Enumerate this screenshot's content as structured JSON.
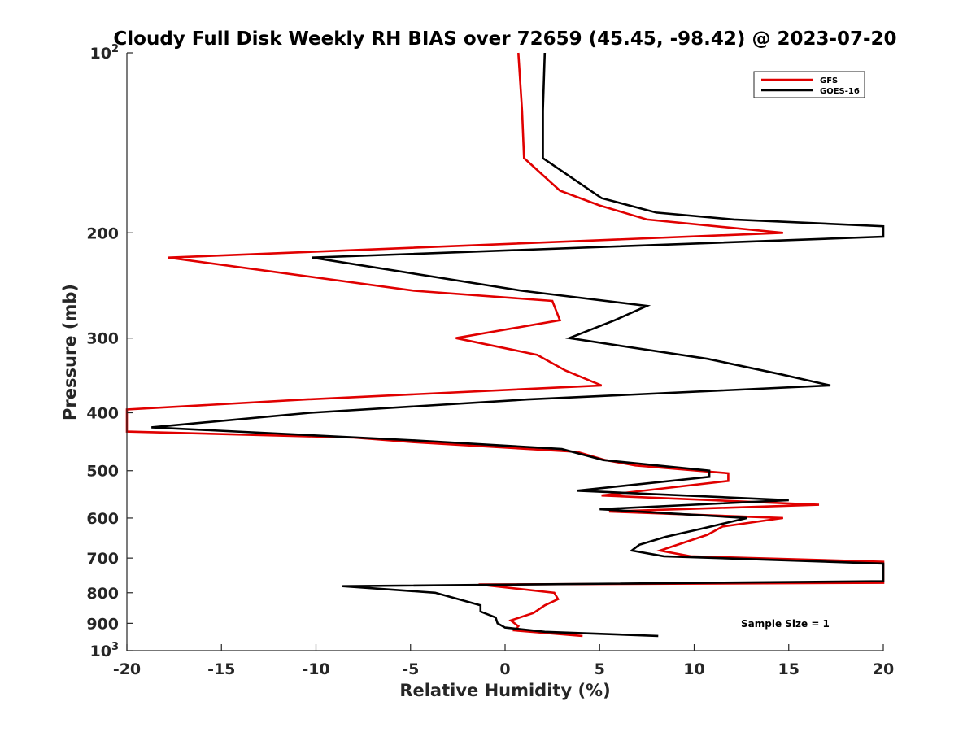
{
  "chart_data": {
    "type": "line",
    "title": "Cloudy Full Disk Weekly RH BIAS over 72659 (45.45, -98.42) @ 2023-07-20",
    "xlabel": "Relative Humidity (%)",
    "ylabel": "Pressure (mb)",
    "xlim": [
      -20,
      20
    ],
    "ylim": [
      100,
      1000
    ],
    "y_scale": "log",
    "y_reversed": true,
    "xticks": [
      -20,
      -15,
      -10,
      -5,
      0,
      5,
      10,
      15,
      20
    ],
    "xtick_labels": [
      "-20",
      "-15",
      "-10",
      "-5",
      "0",
      "5",
      "10",
      "15",
      "20"
    ],
    "yticks": [
      {
        "value": 100,
        "base": "10",
        "exp": "2"
      },
      {
        "value": 200,
        "label": "200"
      },
      {
        "value": 300,
        "label": "300"
      },
      {
        "value": 400,
        "label": "400"
      },
      {
        "value": 500,
        "label": "500"
      },
      {
        "value": 600,
        "label": "600"
      },
      {
        "value": 700,
        "label": "700"
      },
      {
        "value": 800,
        "label": "800"
      },
      {
        "value": 900,
        "label": "900"
      },
      {
        "value": 1000,
        "base": "10",
        "exp": "3"
      }
    ],
    "grid": false,
    "legend_position": "top-right",
    "annotation": "Sample Size = 1",
    "series": [
      {
        "name": "GFS",
        "color": "#e00000",
        "points": [
          [
            0.7,
            100
          ],
          [
            0.9,
            125
          ],
          [
            1.0,
            150
          ],
          [
            2.9,
            170
          ],
          [
            5.0,
            180
          ],
          [
            7.5,
            190
          ],
          [
            14.7,
            200
          ],
          [
            -17.8,
            220
          ],
          [
            -4.8,
            250
          ],
          [
            2.5,
            260
          ],
          [
            2.9,
            280
          ],
          [
            -2.6,
            300
          ],
          [
            1.7,
            320
          ],
          [
            3.2,
            340
          ],
          [
            5.1,
            360
          ],
          [
            -10.5,
            380
          ],
          [
            -20,
            395
          ],
          [
            -20,
            430
          ],
          [
            -8.0,
            440
          ],
          [
            -4.8,
            448
          ],
          [
            3.8,
            465
          ],
          [
            5.3,
            480
          ],
          [
            6.9,
            490
          ],
          [
            11.8,
            505
          ],
          [
            11.8,
            520
          ],
          [
            5.1,
            550
          ],
          [
            16.6,
            570
          ],
          [
            5.5,
            585
          ],
          [
            14.7,
            600
          ],
          [
            11.5,
            620
          ],
          [
            10.7,
            640
          ],
          [
            8.2,
            680
          ],
          [
            9.8,
            695
          ],
          [
            20,
            710
          ],
          [
            20,
            770
          ],
          [
            -1.4,
            775
          ],
          [
            2.6,
            800
          ],
          [
            2.8,
            820
          ],
          [
            2.1,
            840
          ],
          [
            1.5,
            865
          ],
          [
            0.3,
            890
          ],
          [
            0.7,
            910
          ],
          [
            0.5,
            925
          ],
          [
            4.1,
            945
          ]
        ]
      },
      {
        "name": "GOES-16",
        "color": "#000000",
        "points": [
          [
            2.1,
            100
          ],
          [
            2.0,
            125
          ],
          [
            2.0,
            150
          ],
          [
            5.1,
            175
          ],
          [
            8.0,
            185
          ],
          [
            12.1,
            190
          ],
          [
            20,
            195
          ],
          [
            20,
            203
          ],
          [
            -10.2,
            220
          ],
          [
            0.9,
            250
          ],
          [
            7.5,
            265
          ],
          [
            5.8,
            280
          ],
          [
            3.4,
            300
          ],
          [
            10.7,
            325
          ],
          [
            14.6,
            345
          ],
          [
            17.2,
            360
          ],
          [
            1.2,
            380
          ],
          [
            -10.3,
            400
          ],
          [
            -18.7,
            423
          ],
          [
            -4.7,
            445
          ],
          [
            3.0,
            460
          ],
          [
            5.2,
            480
          ],
          [
            10.8,
            500
          ],
          [
            10.8,
            512
          ],
          [
            3.8,
            540
          ],
          [
            15.0,
            560
          ],
          [
            5.0,
            580
          ],
          [
            12.8,
            600
          ],
          [
            10.4,
            625
          ],
          [
            8.5,
            645
          ],
          [
            7.1,
            665
          ],
          [
            6.7,
            680
          ],
          [
            8.4,
            695
          ],
          [
            20,
            715
          ],
          [
            20,
            765
          ],
          [
            -8.6,
            780
          ],
          [
            -3.7,
            800
          ],
          [
            -1.3,
            840
          ],
          [
            -1.3,
            860
          ],
          [
            -0.5,
            880
          ],
          [
            -0.4,
            900
          ],
          [
            0.0,
            915
          ],
          [
            2.1,
            930
          ],
          [
            8.1,
            945
          ]
        ]
      }
    ]
  }
}
